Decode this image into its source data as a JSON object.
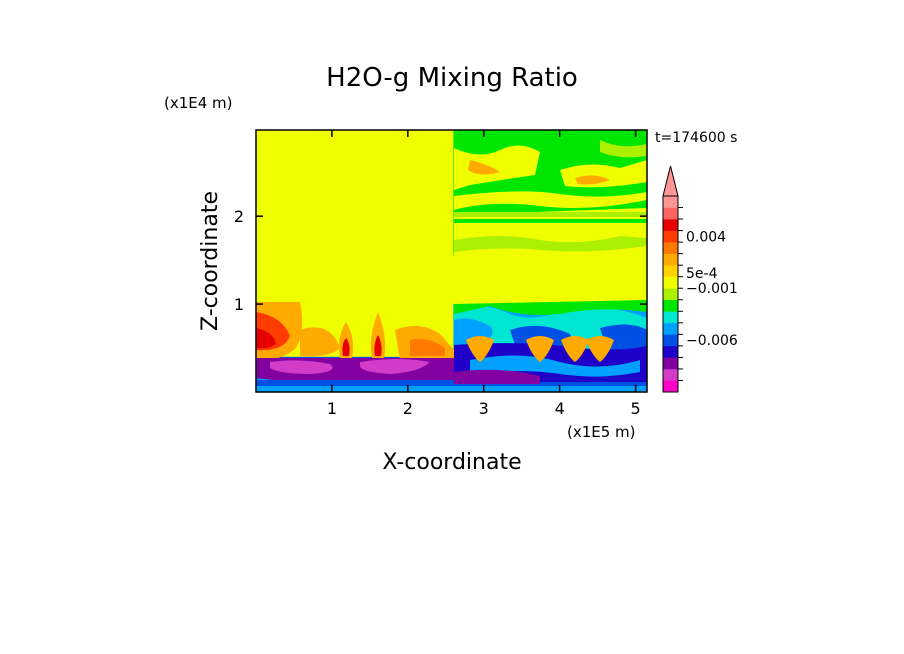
{
  "chart_data": {
    "type": "heatmap",
    "title": "H2O-g Mixing Ratio",
    "xlabel": "X-coordinate",
    "ylabel": "Z-coordinate",
    "x_scale_label": "(x1E5 m)",
    "y_scale_label": "(x1E4 m)",
    "time_label": "t=174600 s",
    "xlim": [
      0,
      5.15
    ],
    "ylim": [
      0,
      2.98
    ],
    "x_ticks": [
      1,
      2,
      3,
      4,
      5
    ],
    "x_tick_labels": [
      "1",
      "2",
      "3",
      "4",
      "5"
    ],
    "y_ticks": [
      1,
      2
    ],
    "y_tick_labels": [
      "1",
      "2"
    ],
    "colorbar": {
      "levels": [
        "#ff00c8",
        "#d23cc8",
        "#8200a0",
        "#1e00c8",
        "#0050e6",
        "#00a0ff",
        "#00e6d2",
        "#00e600",
        "#aaf000",
        "#f0ff00",
        "#ffd200",
        "#ffaa00",
        "#ff7800",
        "#ff3c00",
        "#e60000",
        "#ff6464",
        "#ff9696"
      ],
      "labels": [
        {
          "text": "0.004",
          "level": 13.5
        },
        {
          "text": "5e-4",
          "level": 10.3
        },
        {
          "text": "−0.001",
          "level": 9.0
        },
        {
          "text": "−0.006",
          "level": 4.5
        }
      ],
      "extend_top": true
    },
    "regions": [
      {
        "x0": 0,
        "x1": 5.15,
        "y0": 0,
        "y1": 2.98,
        "level": 9
      },
      {
        "x0": 2.6,
        "x1": 5.15,
        "y0": 1.55,
        "y1": 2.98,
        "level": 7
      },
      {
        "x0": 0,
        "x1": 5.15,
        "y0": 0,
        "y1": 0.4,
        "level": 4
      },
      {
        "x0": 0,
        "x1": 5.15,
        "y0": 0,
        "y1": 0.15,
        "level": 5
      },
      {
        "x0": 2.6,
        "x1": 5.15,
        "y0": 0.15,
        "y1": 1.0,
        "level": 5
      }
    ]
  }
}
